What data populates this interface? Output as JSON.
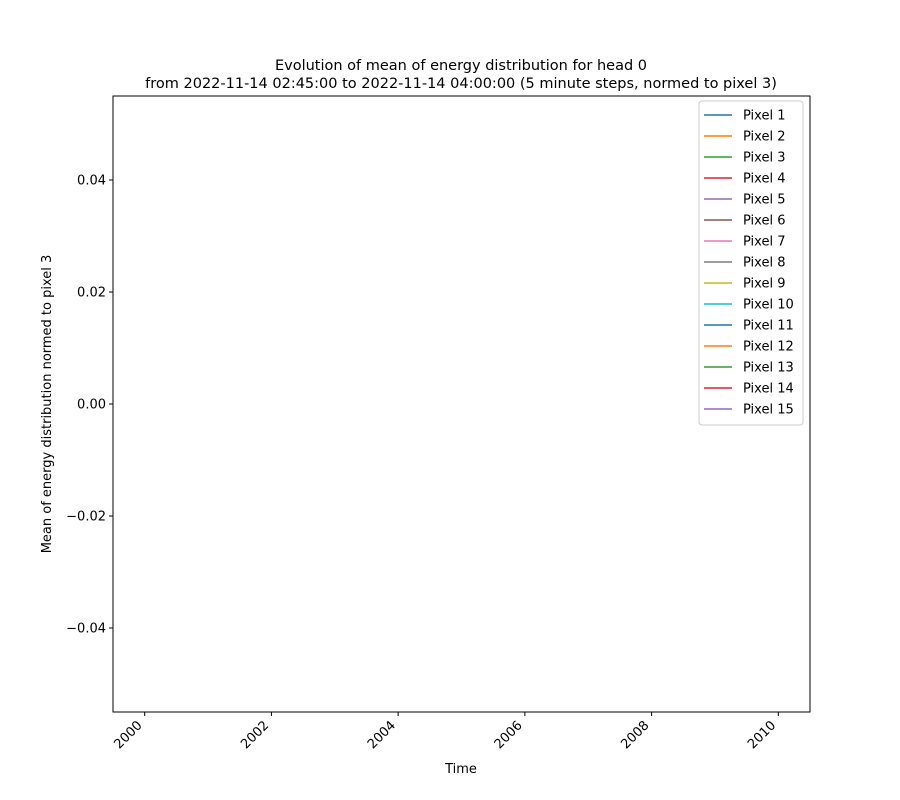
{
  "chart_data": {
    "type": "line",
    "title_line1": "Evolution of mean of energy distribution for head 0",
    "title_line2": "from 2022-11-14 02:45:00 to 2022-11-14 04:00:00 (5 minute steps, normed to pixel 3)",
    "xlabel": "Time",
    "ylabel": "Mean of energy distribution normed to pixel 3",
    "xlim": [
      1999.5,
      2010.5
    ],
    "ylim": [
      -0.055,
      0.055
    ],
    "x_ticks": [
      2000,
      2002,
      2004,
      2006,
      2008,
      2010
    ],
    "x_tick_labels": [
      "2000",
      "2002",
      "2004",
      "2006",
      "2008",
      "2010"
    ],
    "y_ticks": [
      0.04,
      0.02,
      0.0,
      -0.02,
      -0.04
    ],
    "y_tick_labels": [
      "0.04",
      "0.02",
      "0.00",
      "−0.02",
      "−0.04"
    ],
    "legend_position": "top-right",
    "grid": false,
    "series": [
      {
        "name": "Pixel 1",
        "color": "#1f77b4",
        "x": [],
        "y": []
      },
      {
        "name": "Pixel 2",
        "color": "#ff7f0e",
        "x": [],
        "y": []
      },
      {
        "name": "Pixel 3",
        "color": "#2ca02c",
        "x": [],
        "y": []
      },
      {
        "name": "Pixel 4",
        "color": "#d62728",
        "x": [],
        "y": []
      },
      {
        "name": "Pixel 5",
        "color": "#9467bd",
        "x": [],
        "y": []
      },
      {
        "name": "Pixel 6",
        "color": "#8c564b",
        "x": [],
        "y": []
      },
      {
        "name": "Pixel 7",
        "color": "#e377c2",
        "x": [],
        "y": []
      },
      {
        "name": "Pixel 8",
        "color": "#7f7f7f",
        "x": [],
        "y": []
      },
      {
        "name": "Pixel 9",
        "color": "#bcbd22",
        "x": [],
        "y": []
      },
      {
        "name": "Pixel 10",
        "color": "#17becf",
        "x": [],
        "y": []
      },
      {
        "name": "Pixel 11",
        "color": "#1f77b4",
        "x": [],
        "y": []
      },
      {
        "name": "Pixel 12",
        "color": "#ff7f0e",
        "x": [],
        "y": []
      },
      {
        "name": "Pixel 13",
        "color": "#2ca02c",
        "x": [],
        "y": []
      },
      {
        "name": "Pixel 14",
        "color": "#d62728",
        "x": [],
        "y": []
      },
      {
        "name": "Pixel 15",
        "color": "#9467bd",
        "x": [],
        "y": []
      }
    ]
  }
}
